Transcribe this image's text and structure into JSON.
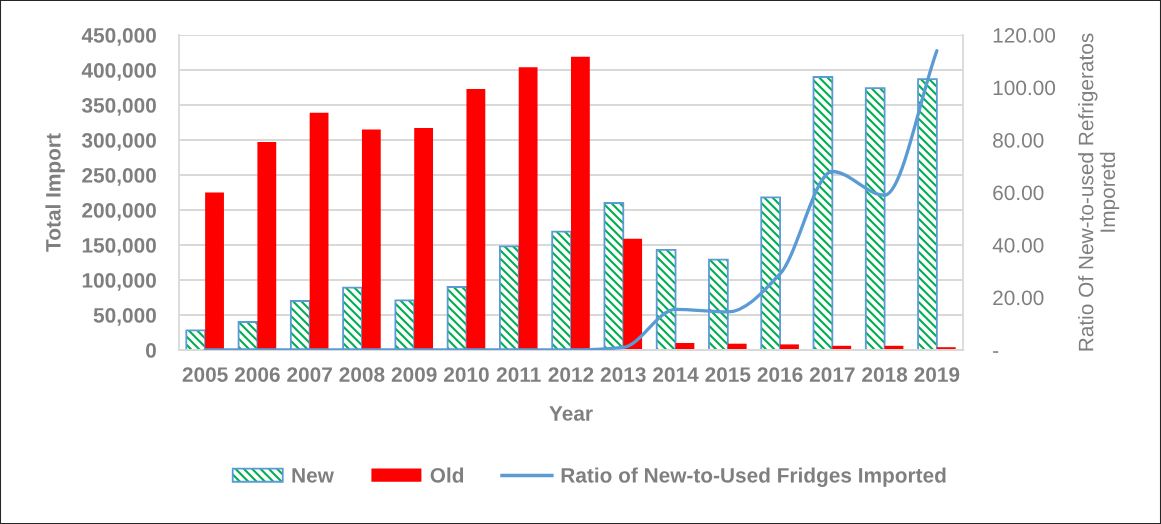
{
  "chart_data": {
    "type": "bar",
    "xlabel": "Year",
    "ylabel": "Total Import",
    "y2label": "Ratio Of New-to-used Refrigeratos\nImporetd",
    "categories": [
      "2005",
      "2006",
      "2007",
      "2008",
      "2009",
      "2010",
      "2011",
      "2012",
      "2013",
      "2014",
      "2015",
      "2016",
      "2017",
      "2018",
      "2019"
    ],
    "series": [
      {
        "name": "New",
        "color": "#5b9bd5",
        "values": [
          28000,
          40000,
          70000,
          89000,
          71000,
          90000,
          148000,
          169000,
          210000,
          143000,
          129000,
          218000,
          390000,
          374000,
          387000
        ]
      },
      {
        "name": "Old",
        "color": "#ff0000",
        "values": [
          225000,
          297000,
          339000,
          315000,
          317000,
          373000,
          404000,
          419000,
          159000,
          10000,
          9000,
          8000,
          6000,
          6000,
          4000
        ]
      },
      {
        "name": "Ratio of New-to-Used Fridges Imported",
        "type": "line",
        "axis": "y2",
        "color": "#5b9bd5",
        "values": [
          0,
          0,
          0,
          0,
          0,
          0,
          0,
          0,
          1,
          15.5,
          14.5,
          29,
          68,
          59,
          114
        ]
      }
    ],
    "ylim": [
      0,
      450000
    ],
    "yticks": [
      0,
      {
        "value": 50000,
        "label": "50,000"
      },
      {
        "value": 100000,
        "label": "100,000"
      },
      {
        "value": 150000,
        "label": "150,000"
      },
      {
        "value": 200000,
        "label": "200,000"
      },
      {
        "value": 250000,
        "label": "250,000"
      },
      {
        "value": 300000,
        "label": "300,000"
      },
      {
        "value": 350000,
        "label": "350,000"
      },
      {
        "value": 400000,
        "label": "400,000"
      },
      {
        "value": 450000,
        "label": "450,000"
      }
    ],
    "y2lim": [
      0,
      120
    ],
    "y2ticks": [
      {
        "value": 0,
        "label": "-"
      },
      {
        "value": 20,
        "label": "20.00"
      },
      {
        "value": 40,
        "label": "40.00"
      },
      {
        "value": 60,
        "label": "60.00"
      },
      {
        "value": 80,
        "label": "80.00"
      },
      {
        "value": 100,
        "label": "100.00"
      },
      {
        "value": 120,
        "label": "120.00"
      }
    ],
    "grid": "y",
    "legend": "bottom",
    "line_style": "solid"
  }
}
